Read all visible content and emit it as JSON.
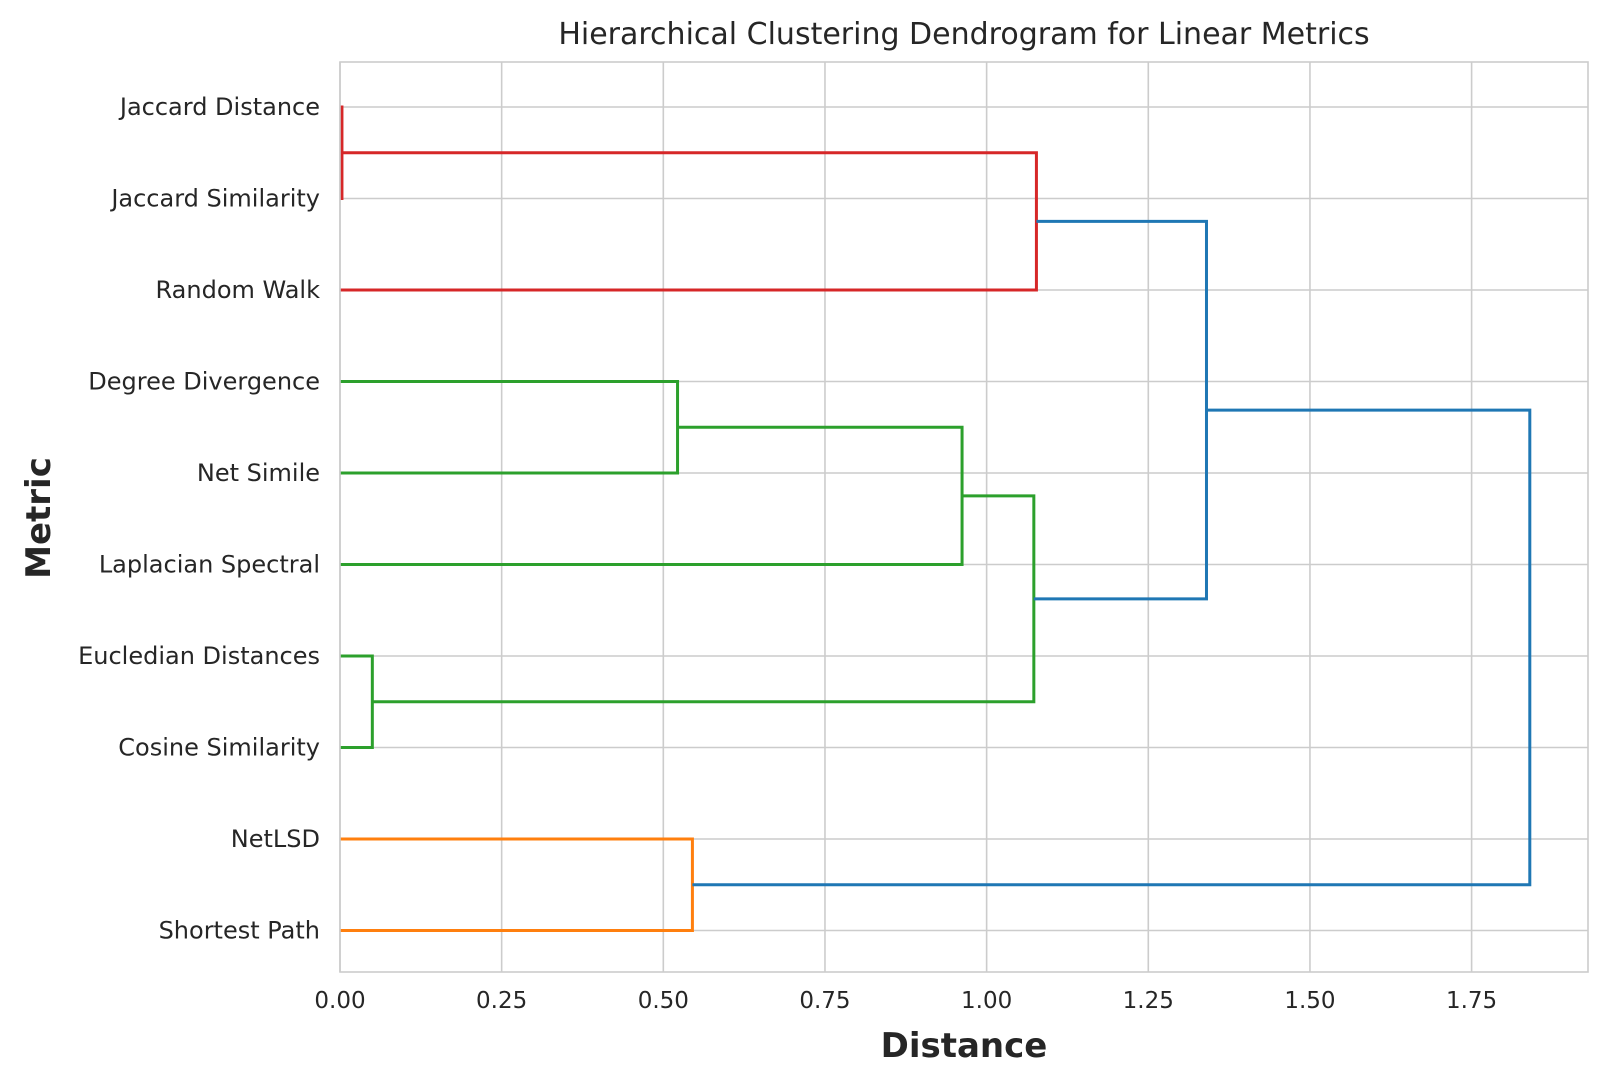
{
  "chart_data": {
    "type": "dendrogram",
    "orientation": "horizontal",
    "title": "Hierarchical Clustering Dendrogram for Linear Metrics",
    "xlabel": "Distance",
    "ylabel": "Metric",
    "xlim": [
      0,
      1.93
    ],
    "xticks": [
      "0.00",
      "0.25",
      "0.50",
      "0.75",
      "1.00",
      "1.25",
      "1.50",
      "1.75"
    ],
    "grid": true,
    "leaves": [
      "Jaccard Distance",
      "Jaccard Similarity",
      "Random Walk",
      "Degree Divergence",
      "Net Simile",
      "Laplacian Spectral",
      "Eucledian Distances",
      "Cosine Similarity",
      "NetLSD",
      "Shortest Path"
    ],
    "colors": {
      "red": "#d62728",
      "green": "#2ca02c",
      "orange": "#ff7f0e",
      "blue": "#1f77b4"
    },
    "merges": [
      {
        "id": "jac",
        "left": "Jaccard Distance",
        "right": "Jaccard Similarity",
        "distance": 0.003,
        "color": "red"
      },
      {
        "id": "red",
        "left": "jac",
        "right": "Random Walk",
        "distance": 1.077,
        "color": "red"
      },
      {
        "id": "dn",
        "left": "Degree Divergence",
        "right": "Net Simile",
        "distance": 0.522,
        "color": "green"
      },
      {
        "id": "dnl",
        "left": "dn",
        "right": "Laplacian Spectral",
        "distance": 0.962,
        "color": "green"
      },
      {
        "id": "ec",
        "left": "Eucledian Distances",
        "right": "Cosine Similarity",
        "distance": 0.05,
        "color": "green"
      },
      {
        "id": "green",
        "left": "dnl",
        "right": "ec",
        "distance": 1.073,
        "color": "green"
      },
      {
        "id": "orange",
        "left": "NetLSD",
        "right": "Shortest Path",
        "distance": 0.545,
        "color": "orange"
      },
      {
        "id": "rg",
        "left": "red",
        "right": "green",
        "distance": 1.34,
        "color": "blue"
      },
      {
        "id": "root",
        "left": "rg",
        "right": "orange",
        "distance": 1.84,
        "color": "blue"
      }
    ]
  }
}
